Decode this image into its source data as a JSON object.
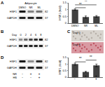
{
  "panels": {
    "A": {
      "label": "A",
      "blot_title": "Adipocyte",
      "lanes": [
        "DMSO",
        "NR",
        "ML"
      ],
      "rows": [
        {
          "name": "HSF1",
          "kda": "82",
          "bands": [
            0.9,
            0.45,
            0.5
          ]
        },
        {
          "name": "GAPDH",
          "kda": "37",
          "bands": [
            0.85,
            0.85,
            0.85
          ]
        }
      ]
    },
    "B": {
      "label": "B",
      "lane_header": "Day",
      "lanes": [
        "0",
        "2",
        "4",
        "6",
        "8"
      ],
      "rows": [
        {
          "name": "HSF1",
          "kda": "82",
          "bands": [
            0.4,
            0.55,
            0.7,
            0.8,
            0.9
          ]
        },
        {
          "name": "GAPDH",
          "kda": "37",
          "bands": [
            0.85,
            0.85,
            0.85,
            0.85,
            0.85
          ]
        }
      ]
    },
    "C": {
      "label": "C",
      "images": [
        {
          "text": "Day 0",
          "color": "#d9d5cf"
        },
        {
          "text": "Day 8",
          "color": "#d99aa2"
        }
      ]
    },
    "D": {
      "label": "D",
      "rows": [
        {
          "name": "HSF1",
          "kda": "82",
          "bands": [
            0.9,
            0.4,
            0.8
          ]
        },
        {
          "name": "GAPDH",
          "kda": "37",
          "bands": [
            0.85,
            0.85,
            0.85
          ]
        }
      ],
      "conditions": [
        {
          "name": "NR",
          "signs": [
            "-",
            "+",
            "+"
          ]
        },
        {
          "name": "HS",
          "signs": [
            "-",
            "-",
            "+"
          ]
        }
      ]
    }
  },
  "chart_data": [
    {
      "type": "bar",
      "panel": "A",
      "y_label": "HSF1 (fold)",
      "categories": [
        "DMSO",
        "NR",
        "ML"
      ],
      "values": [
        1.0,
        0.45,
        0.5
      ],
      "errors": [
        0.05,
        0.08,
        0.06
      ],
      "color": "#404040",
      "ylim": [
        0,
        1.5
      ],
      "yticks": [
        0,
        0.5,
        1,
        1.5
      ],
      "annotations": [
        {
          "text": "**",
          "between": [
            0,
            1
          ]
        },
        {
          "text": "**",
          "between": [
            0,
            2
          ]
        }
      ]
    },
    {
      "type": "bar",
      "panel": "D",
      "y_label": "HSF1 (fold)",
      "categories": [
        null,
        null,
        null
      ],
      "values": [
        1.0,
        0.4,
        0.9
      ],
      "errors": [
        0.08,
        0.05,
        0.1
      ],
      "color": "#404040",
      "ylim": [
        0,
        1.5
      ],
      "yticks": [
        0,
        0.5,
        1,
        1.5
      ],
      "annotations": [
        {
          "text": "**",
          "between": [
            0,
            1
          ]
        },
        {
          "text": "**",
          "between": [
            1,
            2
          ]
        }
      ]
    }
  ]
}
